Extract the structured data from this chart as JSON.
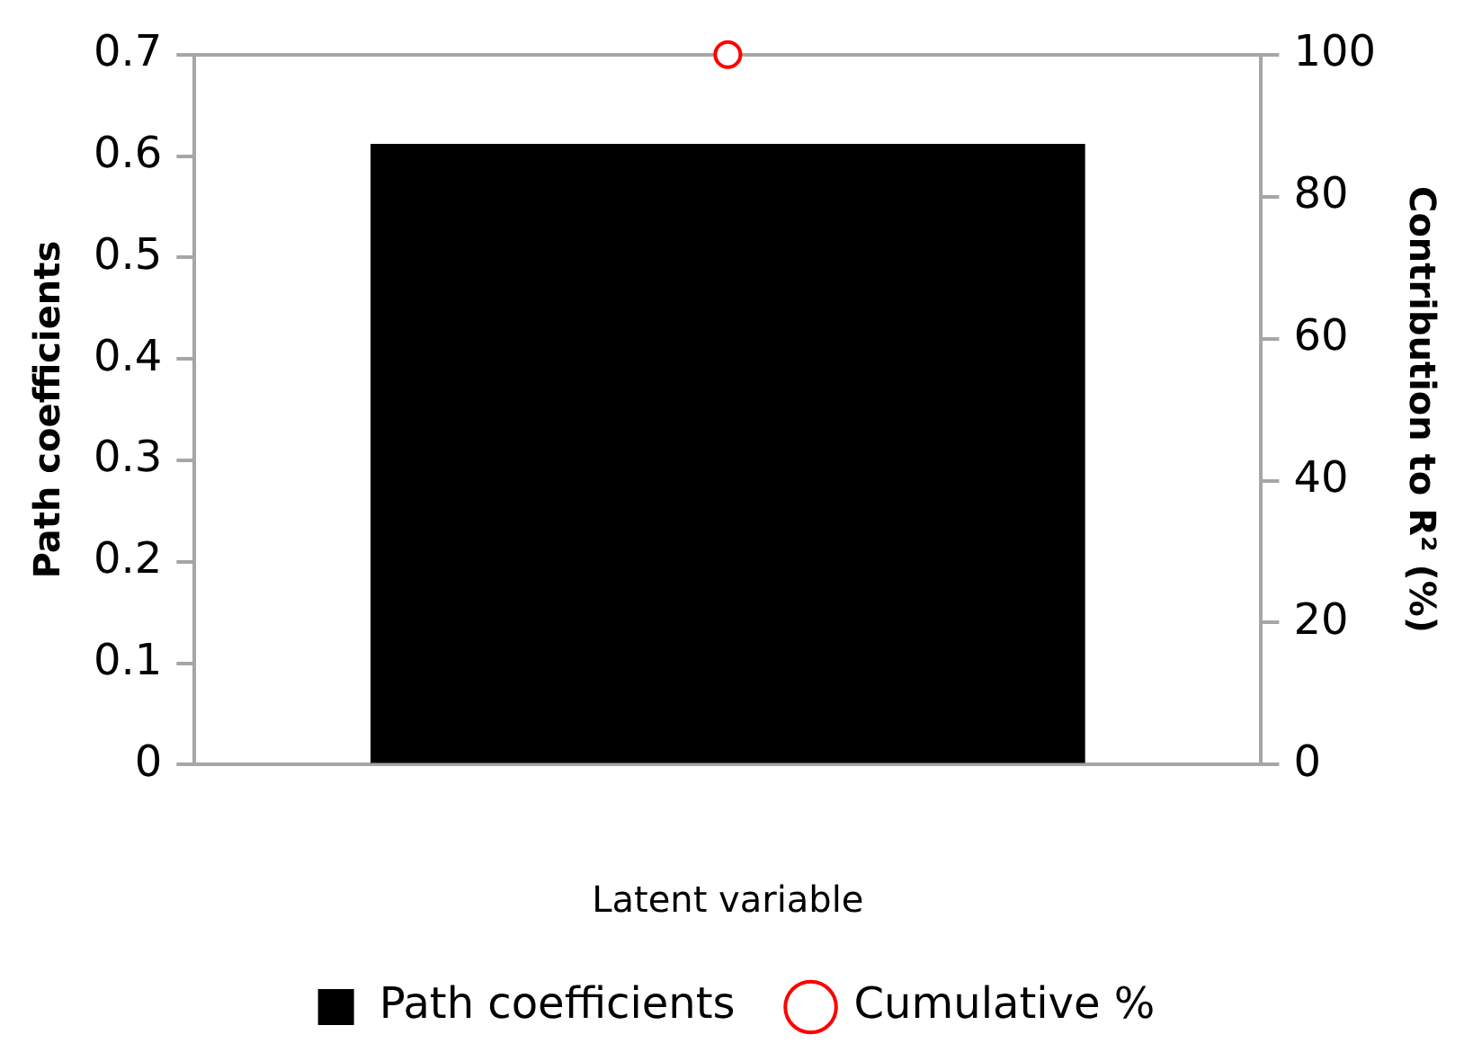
{
  "chart_data": {
    "type": "bar",
    "categories": [
      null
    ],
    "xlabel": "Latent variable",
    "ylabel": "Path coefficients",
    "y2label": "Contribution to R² (%)",
    "series": [
      {
        "name": "Path coefficients",
        "color": "#000000",
        "values": [
          0.612
        ]
      },
      {
        "name": "Cumulative %",
        "type": "line",
        "color": "#ff0000",
        "values": [
          100
        ],
        "axis": "y2"
      }
    ],
    "ylim": [
      0,
      0.7
    ],
    "yticks": [
      0,
      0.1,
      0.2,
      0.3,
      0.4,
      0.5,
      0.6,
      0.7
    ],
    "y2lim": [
      0,
      100
    ],
    "y2ticks": [
      0,
      20,
      40,
      60,
      80,
      100
    ],
    "marker": "circle",
    "legend": "bottom",
    "grid": false
  }
}
